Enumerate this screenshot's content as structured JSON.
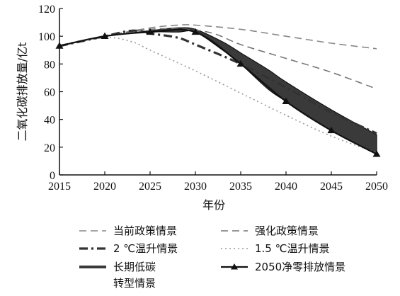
{
  "chart_data": {
    "type": "line",
    "xlabel": "年份",
    "ylabel": "二氧化碳排放量/亿t",
    "xlim": [
      2015,
      2050
    ],
    "ylim": [
      0,
      120
    ],
    "x_ticks": [
      2015,
      2020,
      2025,
      2030,
      2035,
      2040,
      2045,
      2050
    ],
    "y_ticks": [
      0,
      20,
      40,
      60,
      80,
      100,
      120
    ],
    "grid": false,
    "legend_position": "bottom",
    "series": [
      {
        "name": "当前政策情景",
        "style": "dashed",
        "color": "#888888",
        "x": [
          2015,
          2020,
          2025,
          2028,
          2030,
          2035,
          2040,
          2045,
          2050
        ],
        "y": [
          93,
          100,
          106,
          108,
          108,
          105,
          100,
          95,
          91
        ]
      },
      {
        "name": "强化政策情景",
        "style": "dashed",
        "color": "#777777",
        "x": [
          2015,
          2020,
          2025,
          2029,
          2032,
          2035,
          2040,
          2045,
          2050
        ],
        "y": [
          93,
          100,
          105,
          105,
          102,
          94,
          84,
          74,
          62
        ]
      },
      {
        "name": "2 ℃温升情景",
        "style": "dashdot",
        "color": "#333333",
        "x": [
          2015,
          2020,
          2023,
          2025,
          2028,
          2030,
          2035,
          2040,
          2045,
          2050
        ],
        "y": [
          93,
          100,
          104,
          102,
          99,
          94,
          80,
          63,
          45,
          30
        ]
      },
      {
        "name": "1.5 ℃温升情景",
        "style": "dotted",
        "color": "#999999",
        "x": [
          2015,
          2020,
          2023,
          2025,
          2030,
          2035,
          2040,
          2045,
          2050
        ],
        "y": [
          93,
          99,
          96,
          90,
          75,
          59,
          43,
          28,
          16
        ]
      },
      {
        "name": "2050净零排放情景",
        "style": "solid-marker",
        "color": "#111111",
        "x": [
          2015,
          2020,
          2025,
          2030,
          2035,
          2040,
          2045,
          2050
        ],
        "y": [
          93,
          100,
          103,
          103,
          80,
          53,
          32,
          15
        ]
      }
    ],
    "band": {
      "name_lines": [
        "长期低碳",
        "转型情景"
      ],
      "color": "#3a3a3a",
      "x": [
        2015,
        2020,
        2025,
        2028,
        2030,
        2033,
        2035,
        2038,
        2040,
        2045,
        2050
      ],
      "upper": [
        93,
        100,
        104,
        106,
        105,
        96,
        88,
        76,
        67,
        47,
        29
      ],
      "lower": [
        93,
        100,
        103,
        103,
        103,
        90,
        80,
        62,
        53,
        32,
        15
      ]
    }
  }
}
